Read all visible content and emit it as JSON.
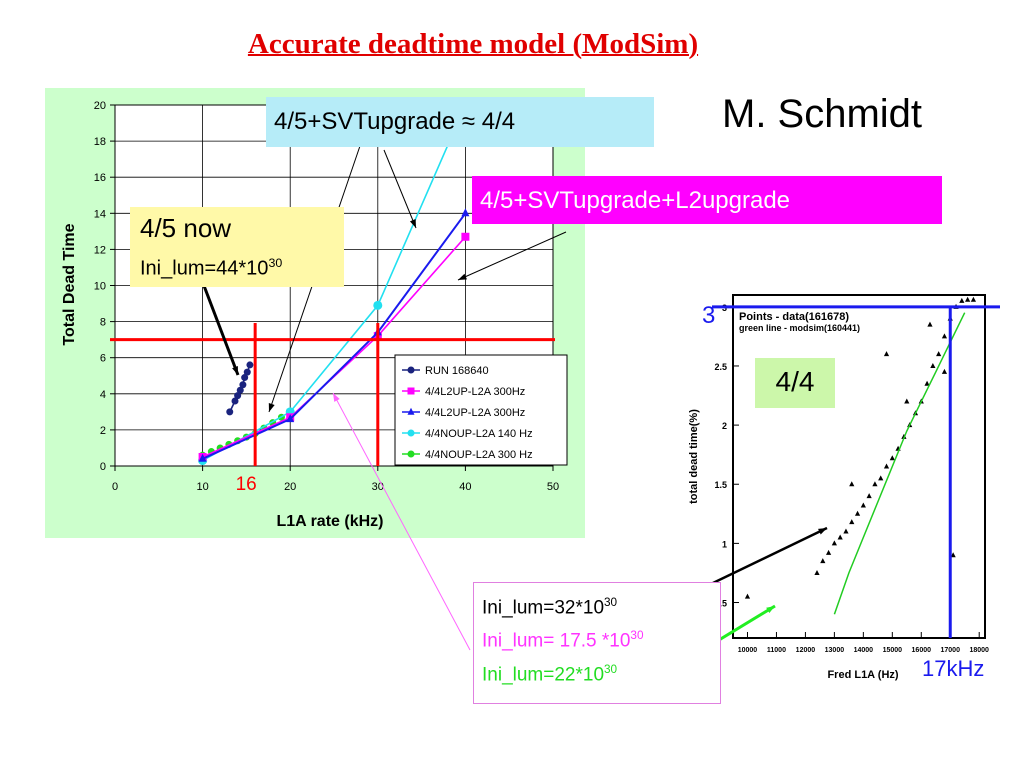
{
  "slide": {
    "title": "Accurate deadtime model (ModSim)",
    "author": "M. Schmidt"
  },
  "callouts": {
    "svt": "4/5+SVTupgrade ≈ 4/4",
    "svt_l2": "4/5+SVTupgrade+L2upgrade",
    "now": "4/5 now",
    "now_lumi_base": "Ini_lum=44*10",
    "now_lumi_exp": "30",
    "inset_label": "4/4",
    "ini1_base": "Ini_lum=32*10",
    "ini1_exp": "30",
    "ini2_base": "Ini_lum= 17.5 *10",
    "ini2_exp": "30",
    "ini3_base": "Ini_lum=22*10",
    "ini3_exp": "30",
    "rate_17": "17kHz",
    "dt_3": "3",
    "rate_16": "16"
  },
  "colors": {
    "title": "#e00000",
    "plot_bg": "#ccffcc",
    "red_marker": "#ff0000",
    "blue_marker": "#1a1aee",
    "cyan_box": "#b6ecf8",
    "magenta_box": "#ff00ff",
    "yellow_box": "#fff9a8",
    "green_box": "#ccf7aa"
  },
  "chart_data": [
    {
      "type": "line",
      "xlabel": "L1A rate (kHz)",
      "ylabel": "Total Dead Time",
      "xlim": [
        0,
        50
      ],
      "ylim": [
        0,
        20
      ],
      "x_ticks": [
        0,
        10,
        20,
        30,
        40,
        50
      ],
      "y_ticks": [
        0,
        2,
        4,
        6,
        8,
        10,
        12,
        14,
        16,
        18,
        20
      ],
      "grid": true,
      "legend": "lower-right",
      "series": [
        {
          "name": "RUN 168640",
          "color": "#1a237e",
          "marker": "circle",
          "x": [
            13.1,
            13.7,
            14.0,
            14.3,
            14.6,
            14.8,
            15.1,
            15.4
          ],
          "y": [
            3.0,
            3.6,
            3.9,
            4.2,
            4.5,
            4.9,
            5.2,
            5.6
          ]
        },
        {
          "name": "4/4L2UP-L2A 300Hz",
          "color": "#ff00ff",
          "marker": "square",
          "x": [
            10,
            20,
            30,
            40
          ],
          "y": [
            0.5,
            2.7,
            7.2,
            12.7
          ]
        },
        {
          "name": "4/4L2UP-L2A 300Hz",
          "color": "#1a1aee",
          "marker": "triangle",
          "x": [
            10,
            20,
            30,
            40
          ],
          "y": [
            0.4,
            2.6,
            7.4,
            14.0
          ]
        },
        {
          "name": "4/4NOUP-L2A 140 Hz",
          "color": "#22e0f0",
          "marker": "circle",
          "x": [
            10,
            20,
            30,
            40
          ],
          "y": [
            0.3,
            3.0,
            8.9,
            20.0
          ]
        },
        {
          "name": "4/4NOUP-L2A 300 Hz",
          "color": "#22dd22",
          "marker": "circle",
          "x": [
            10,
            11,
            12,
            13,
            14,
            15,
            16,
            17,
            18,
            19,
            20
          ],
          "y": [
            0.6,
            0.8,
            1.0,
            1.2,
            1.4,
            1.6,
            1.8,
            2.1,
            2.4,
            2.7,
            3.0
          ]
        }
      ],
      "threshold_y": 7,
      "markers_x": [
        16,
        30
      ]
    },
    {
      "type": "scatter",
      "title": "",
      "xlabel": "Fred L1A (Hz)",
      "ylabel": "total dead time(%)",
      "xlim": [
        9500,
        18200
      ],
      "ylim": [
        0.2,
        3.1
      ],
      "x_ticks": [
        10000,
        11000,
        12000,
        13000,
        14000,
        15000,
        16000,
        17000,
        18000
      ],
      "y_ticks": [
        0.5,
        1,
        1.5,
        2,
        2.5,
        3
      ],
      "legend_lines": [
        "Points - data(161678)",
        "green line - modsim(160441)"
      ],
      "series": [
        {
          "name": "Points - data(161678)",
          "color": "#000000",
          "marker": "triangle",
          "x": [
            10000,
            12400,
            12600,
            12800,
            13000,
            13200,
            13400,
            13600,
            13800,
            14000,
            14200,
            14400,
            14600,
            14800,
            15000,
            15200,
            15400,
            15600,
            15800,
            16000,
            16200,
            16400,
            16600,
            16800,
            17000,
            17200,
            17400,
            17600,
            17800,
            14800,
            15500,
            16300,
            13600,
            16800,
            17100
          ],
          "y": [
            0.55,
            0.75,
            0.85,
            0.92,
            1.0,
            1.05,
            1.1,
            1.18,
            1.25,
            1.32,
            1.4,
            1.5,
            1.55,
            1.65,
            1.72,
            1.8,
            1.9,
            2.0,
            2.1,
            2.2,
            2.35,
            2.5,
            2.6,
            2.75,
            2.9,
            3.0,
            3.05,
            3.06,
            3.06,
            2.6,
            2.2,
            2.85,
            1.5,
            2.45,
            0.9
          ]
        },
        {
          "name": "green line - modsim(160441)",
          "color": "#22cc22",
          "marker": "line",
          "x": [
            13000,
            13500,
            14000,
            14500,
            15000,
            15500,
            16000,
            16500,
            17000,
            17500
          ],
          "y": [
            0.4,
            0.75,
            1.05,
            1.35,
            1.65,
            1.95,
            2.2,
            2.45,
            2.7,
            2.95
          ]
        }
      ],
      "threshold_y": 3,
      "marker_x": 17000
    }
  ]
}
